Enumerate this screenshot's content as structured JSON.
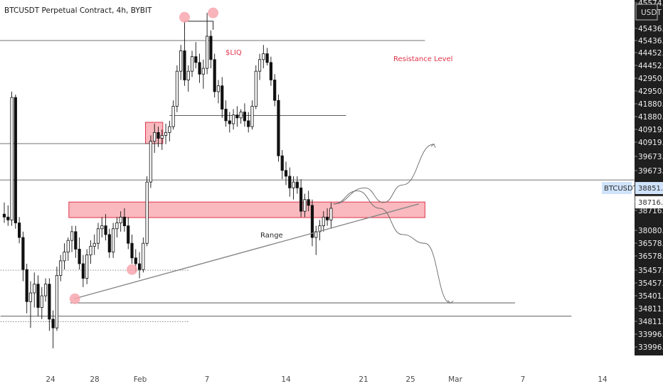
{
  "title": "BTCUSDT Perpetual Contract, 4h, BYBIT",
  "currency_badge": "USDT",
  "symbol_badge": "BTCUSDT",
  "symbol_price": "38851.0",
  "current_price": "38716.5",
  "colors": {
    "zone_fill": "#f7a7ae",
    "zone_stroke": "#e0344a",
    "axis_bg": "#1f1f1f",
    "accent": "#e0344a",
    "badge_blue": "#cfe3fb"
  },
  "annotations": {
    "resistance": "Resistance Level",
    "liq": "$LIQ",
    "range": "Range"
  },
  "chart_data": {
    "type": "candlestick",
    "title": "BTCUSDT Perpetual Contract, 4h, BYBIT",
    "x_tick_labels": [
      "24",
      "28",
      "Feb",
      "7",
      "14",
      "21",
      "25",
      "Mar",
      "7",
      "14"
    ],
    "y_tick_labels": [
      "45574.0",
      "45436.5",
      "45436.5",
      "44452.0",
      "44452.0",
      "42950.0",
      "42950.0",
      "41880.0",
      "41880.0",
      "40919.0",
      "40919.0",
      "39673.0",
      "39673.0",
      "38851.0",
      "38716.5",
      "38080.0",
      "36578.5",
      "36578.5",
      "35457.0",
      "35457.0",
      "35401.0",
      "34811.5",
      "34811.5",
      "33996.5",
      "33996.5"
    ],
    "ylim": [
      33700,
      45650
    ],
    "candles": [
      [
        22.0,
        38500,
        38900,
        38200,
        38400
      ],
      [
        22.5,
        38400,
        38800,
        38100,
        38300
      ],
      [
        23.0,
        38300,
        42700,
        38100,
        42500
      ],
      [
        23.5,
        42500,
        42600,
        38000,
        38200
      ],
      [
        24.0,
        38200,
        38400,
        37500,
        37700
      ],
      [
        24.5,
        37700,
        37900,
        36200,
        36600
      ],
      [
        25.0,
        36600,
        36800,
        35100,
        35500
      ],
      [
        25.5,
        35500,
        36200,
        34600,
        35800
      ],
      [
        26.0,
        35800,
        36500,
        35300,
        36100
      ],
      [
        26.5,
        36100,
        36400,
        35000,
        35300
      ],
      [
        27.0,
        35300,
        36000,
        34900,
        35700
      ],
      [
        27.5,
        35700,
        36300,
        35500,
        36100
      ],
      [
        28.0,
        36100,
        36300,
        34500,
        34900
      ],
      [
        28.5,
        34900,
        35200,
        33900,
        34600
      ],
      [
        29.0,
        34600,
        36700,
        34500,
        36400
      ],
      [
        29.5,
        36400,
        37100,
        36200,
        36900
      ],
      [
        30.0,
        36900,
        37500,
        36600,
        37200
      ],
      [
        30.5,
        37200,
        37700,
        36900,
        37600
      ],
      [
        31.0,
        37600,
        38100,
        37200,
        37900
      ],
      [
        31.5,
        37900,
        38100,
        37000,
        37300
      ],
      [
        32.0,
        37300,
        37700,
        36600,
        36800
      ],
      [
        32.5,
        36800,
        37100,
        36000,
        36300
      ],
      [
        33.0,
        36300,
        37300,
        36100,
        37100
      ],
      [
        33.5,
        37100,
        37600,
        36800,
        37400
      ],
      [
        34.0,
        37400,
        37800,
        37100,
        37500
      ],
      [
        34.5,
        37500,
        38200,
        37300,
        38000
      ],
      [
        35.0,
        38000,
        38400,
        37700,
        38100
      ],
      [
        35.5,
        38100,
        38500,
        37600,
        37800
      ],
      [
        36.0,
        37800,
        38000,
        37000,
        37200
      ],
      [
        36.5,
        37200,
        38200,
        37000,
        38000
      ],
      [
        37.0,
        38000,
        38400,
        37700,
        38200
      ],
      [
        37.5,
        38200,
        38600,
        37900,
        38400
      ],
      [
        38.0,
        38400,
        38700,
        37900,
        38100
      ],
      [
        38.5,
        38100,
        38400,
        37300,
        37500
      ],
      [
        39.0,
        37500,
        37800,
        36800,
        37000
      ],
      [
        39.5,
        37000,
        37300,
        36500,
        36800
      ],
      [
        40.0,
        36800,
        37200,
        36300,
        36600
      ],
      [
        40.5,
        36600,
        37700,
        36500,
        37500
      ],
      [
        41.0,
        37500,
        39800,
        37400,
        39600
      ],
      [
        41.5,
        39600,
        41200,
        39400,
        41000
      ],
      [
        42.0,
        41000,
        41600,
        40600,
        41300
      ],
      [
        42.5,
        41300,
        41500,
        40800,
        41100
      ],
      [
        43.0,
        41100,
        41400,
        40700,
        41200
      ],
      [
        43.5,
        41200,
        41600,
        40900,
        41300
      ],
      [
        44.0,
        41300,
        41700,
        41000,
        41500
      ],
      [
        44.5,
        41500,
        42400,
        41400,
        42200
      ],
      [
        45.0,
        42200,
        43600,
        42000,
        43400
      ],
      [
        45.5,
        43400,
        44300,
        43100,
        44100
      ],
      [
        46.0,
        44100,
        45000,
        42900,
        43100
      ],
      [
        46.5,
        43100,
        43600,
        42700,
        43400
      ],
      [
        47.0,
        43400,
        44100,
        43200,
        43900
      ],
      [
        47.5,
        43900,
        44400,
        43500,
        43700
      ],
      [
        48.0,
        43700,
        44000,
        43000,
        43300
      ],
      [
        48.5,
        43300,
        43800,
        42800,
        43500
      ],
      [
        49.0,
        43500,
        45400,
        43300,
        44600
      ],
      [
        49.5,
        44600,
        44800,
        43500,
        43800
      ],
      [
        50.0,
        43800,
        44000,
        42500,
        42700
      ],
      [
        50.5,
        42700,
        43100,
        42300,
        42900
      ],
      [
        51.0,
        42900,
        43200,
        41800,
        42100
      ],
      [
        51.5,
        42100,
        42400,
        41500,
        41700
      ],
      [
        52.0,
        41700,
        42000,
        41300,
        41600
      ],
      [
        52.5,
        41600,
        42100,
        41400,
        41900
      ],
      [
        53.0,
        41900,
        42200,
        41500,
        41800
      ],
      [
        53.5,
        41800,
        42100,
        41600,
        42000
      ],
      [
        54.0,
        42000,
        42300,
        41500,
        41700
      ],
      [
        54.5,
        41700,
        42000,
        41300,
        41500
      ],
      [
        55.0,
        41500,
        42400,
        41400,
        42200
      ],
      [
        55.5,
        42200,
        43600,
        42100,
        43400
      ],
      [
        56.0,
        43400,
        44000,
        43100,
        43800
      ],
      [
        56.5,
        43800,
        44300,
        43500,
        44000
      ],
      [
        57.0,
        44000,
        44200,
        43600,
        43700
      ],
      [
        57.5,
        43700,
        43900,
        42900,
        43100
      ],
      [
        58.0,
        43100,
        43300,
        42200,
        42400
      ],
      [
        58.5,
        42400,
        42600,
        40300,
        40500
      ],
      [
        59.0,
        40500,
        40700,
        39700,
        40000
      ],
      [
        59.5,
        40000,
        40300,
        39500,
        39800
      ],
      [
        60.0,
        39800,
        40100,
        39100,
        39400
      ],
      [
        60.5,
        39400,
        39800,
        39000,
        39600
      ],
      [
        61.0,
        39600,
        39800,
        39200,
        39400
      ],
      [
        61.5,
        39400,
        39700,
        38400,
        38600
      ],
      [
        62.0,
        38600,
        39200,
        38400,
        39000
      ],
      [
        62.5,
        39000,
        39300,
        38600,
        38800
      ],
      [
        63.0,
        38800,
        39000,
        37400,
        37700
      ],
      [
        63.5,
        37700,
        38100,
        37100,
        37900
      ],
      [
        64.0,
        37900,
        38300,
        37600,
        38100
      ],
      [
        64.5,
        38100,
        38600,
        37900,
        38400
      ],
      [
        65.0,
        38400,
        38700,
        38100,
        38300
      ],
      [
        65.5,
        38300,
        38900,
        38000,
        38700
      ]
    ],
    "levels": [
      {
        "price": 44452,
        "x_start_day": 20,
        "x_end_day": 78
      },
      {
        "price": 41880,
        "x_start_day": 44,
        "x_end_day": 67.5
      },
      {
        "price": 40919,
        "x_start_day": 20,
        "x_end_day": 43
      },
      {
        "price": 39673,
        "x_start_day": 20,
        "x_end_day": 108
      },
      {
        "price": 35457,
        "x_start_day": 30.8,
        "x_end_day": 90
      },
      {
        "price": 35000,
        "x_start_day": 21.5,
        "x_end_day": 97.5
      }
    ],
    "dotted_levels": [
      {
        "price": 36578.5,
        "x_start_day": 21.5,
        "x_end_day": 46.5
      },
      {
        "price": 34811.5,
        "x_start_day": 21.5,
        "x_end_day": 46.5
      }
    ],
    "zones": [
      {
        "y_top": 38916,
        "y_bottom": 38382,
        "x_start_day": 30.6,
        "x_end_day": 78
      },
      {
        "y_top": 41648,
        "y_bottom": 40919,
        "x_start_day": 40.8,
        "x_end_day": 43.1
      }
    ],
    "range_line": {
      "from": [
        31.3,
        35600
      ],
      "to": [
        77.2,
        38851
      ]
    },
    "liq_bracket": {
      "left_day": 46,
      "right_day": 49.8,
      "price": 45115
    },
    "circles": [
      {
        "day": 31.4,
        "price": 35600
      },
      {
        "day": 39.0,
        "price": 36600
      },
      {
        "day": 46.0,
        "price": 45250
      },
      {
        "day": 49.8,
        "price": 45400
      }
    ],
    "projections": [
      {
        "points": [
          [
            65.8,
            38850
          ],
          [
            70,
            39400
          ],
          [
            72.5,
            38900
          ],
          [
            75,
            39500
          ],
          [
            79.2,
            40900
          ]
        ]
      },
      {
        "points": [
          [
            65.8,
            38850
          ],
          [
            69,
            39300
          ],
          [
            72,
            38700
          ],
          [
            75,
            37800
          ],
          [
            78,
            37500
          ],
          [
            81.4,
            35450
          ]
        ]
      }
    ]
  }
}
